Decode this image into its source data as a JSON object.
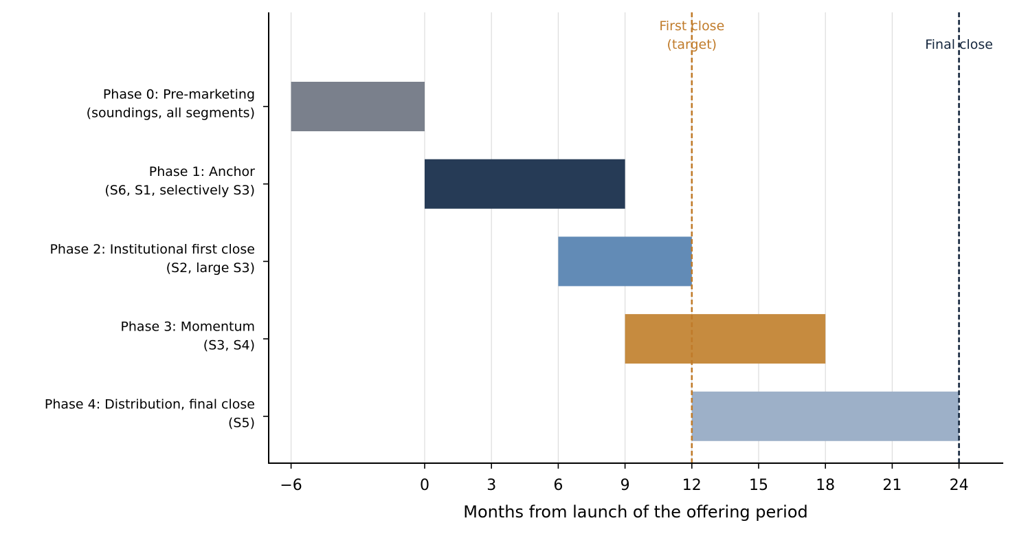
{
  "chart_data": {
    "type": "gantt",
    "xlabel": "Months from launch of the offering period",
    "xticks": [
      -6,
      0,
      3,
      6,
      9,
      12,
      15,
      18,
      21,
      24
    ],
    "xtick_labels": [
      "−6",
      "0",
      "3",
      "6",
      "9",
      "12",
      "15",
      "18",
      "21",
      "24"
    ],
    "xlim": [
      -7,
      26
    ],
    "grid": "vertical",
    "phases": [
      {
        "label_lines": [
          "Phase 0: Pre-marketing",
          "(soundings, all segments)"
        ],
        "start": -6,
        "end": 0,
        "color": "#7a808c"
      },
      {
        "label_lines": [
          "Phase 1: Anchor",
          "(S6, S1, selectively S3)"
        ],
        "start": 0,
        "end": 9,
        "color": "#263b56"
      },
      {
        "label_lines": [
          "Phase 2: Institutional first close",
          "(S2, large S3)"
        ],
        "start": 6,
        "end": 12,
        "color": "#628bb6"
      },
      {
        "label_lines": [
          "Phase 3: Momentum",
          "(S3, S4)"
        ],
        "start": 9,
        "end": 18,
        "color": "#c68b3f"
      },
      {
        "label_lines": [
          "Phase 4: Distribution, final close",
          "(S5)"
        ],
        "start": 12,
        "end": 24,
        "color": "#9db0c8"
      }
    ],
    "reference_lines": [
      {
        "x": 12,
        "label_lines": [
          "First close",
          "(target)"
        ],
        "color": "#c07b2a"
      },
      {
        "x": 24,
        "label_lines": [
          "Final close"
        ],
        "color": "#14263d"
      }
    ]
  }
}
